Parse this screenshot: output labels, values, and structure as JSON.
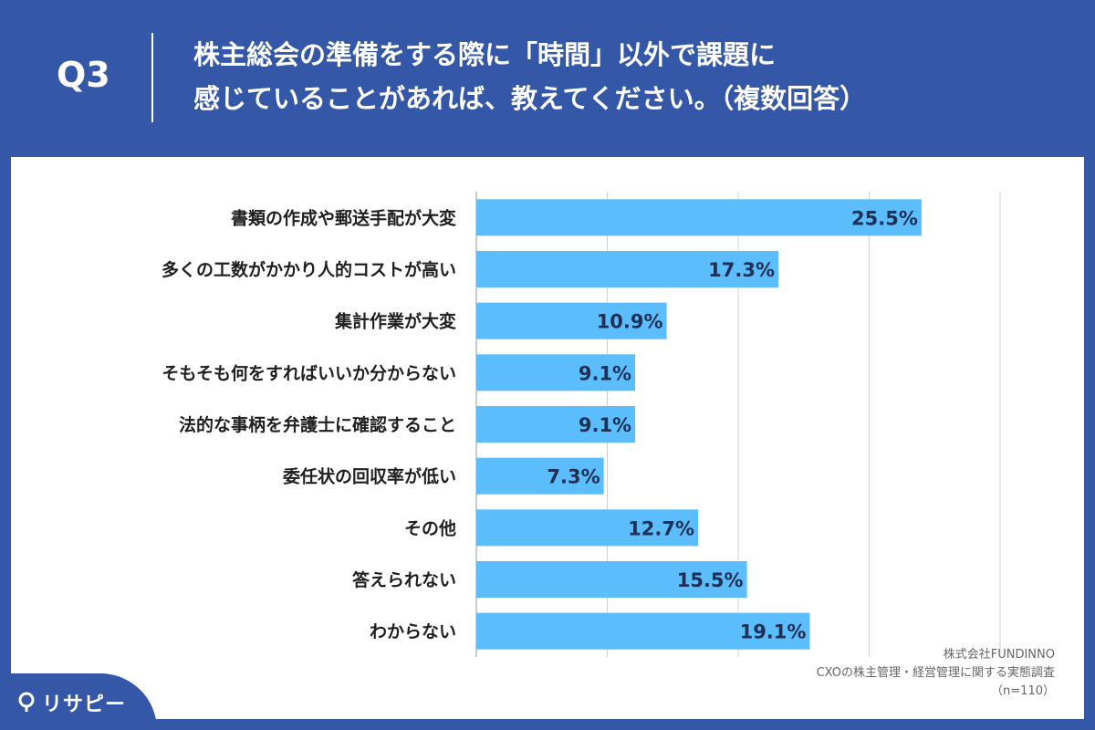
{
  "header": {
    "question_number": "Q3",
    "question_lines": [
      "株主総会の準備をする際に「時間」以外で課題に",
      "感じていることがあれば、教えてください。（複数回答）"
    ]
  },
  "colors": {
    "background": "#3457a8",
    "bar": "#5bbdfb",
    "grid": "#d0d0d0",
    "panel": "#ffffff"
  },
  "chart_data": {
    "type": "bar",
    "orientation": "horizontal",
    "categories": [
      "書類の作成や郵送手配が大変",
      "多くの工数がかかり人的コストが高い",
      "集計作業が大変",
      "そもそも何をすればいいか分からない",
      "法的な事柄を弁護士に確認すること",
      "委任状の回収率が低い",
      "その他",
      "答えられない",
      "わからない"
    ],
    "values": [
      25.5,
      17.3,
      10.9,
      9.1,
      9.1,
      7.3,
      12.7,
      15.5,
      19.1
    ],
    "value_labels": [
      "25.5%",
      "17.3%",
      "10.9%",
      "9.1%",
      "9.1%",
      "7.3%",
      "12.7%",
      "15.5%",
      "19.1%"
    ],
    "xlim": [
      0,
      30
    ],
    "grid": true,
    "gridlines": [
      0,
      7.5,
      15,
      22.5,
      30
    ]
  },
  "footer": {
    "source_lines": [
      "株式会社FUNDINNO",
      "CXOの株主管理・経営管理に関する実態調査",
      "（n=110）"
    ],
    "brand_name": "リサピー"
  }
}
